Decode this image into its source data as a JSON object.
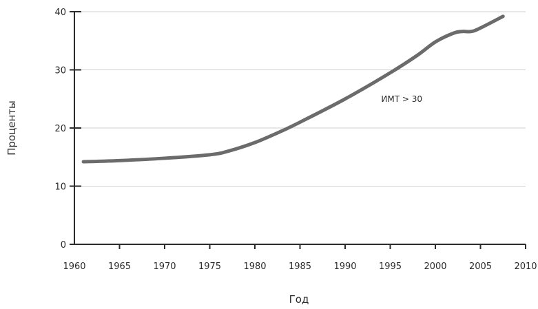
{
  "chart_data": {
    "type": "line",
    "xlabel": "Год",
    "ylabel": "Проценты",
    "xlim": [
      1960,
      2010
    ],
    "ylim": [
      0,
      40
    ],
    "x_ticks": [
      1960,
      1965,
      1970,
      1975,
      1980,
      1985,
      1990,
      1995,
      2000,
      2005,
      2010
    ],
    "y_ticks": [
      0,
      10,
      20,
      30,
      40
    ],
    "grid": true,
    "colors": {
      "line": "#6b6b6b",
      "grid": "#cfcfcf",
      "axis": "#2b2b2b"
    },
    "series": [
      {
        "name": "ИМТ > 30",
        "x": [
          1961,
          1965,
          1970,
          1975,
          1977,
          1980,
          1983,
          1985,
          1990,
          1995,
          1998,
          2000,
          2002,
          2003,
          2004,
          2005,
          2007.5
        ],
        "y": [
          14.2,
          14.4,
          14.8,
          15.4,
          16.0,
          17.5,
          19.5,
          21.0,
          25.0,
          29.5,
          32.5,
          34.8,
          36.3,
          36.6,
          36.6,
          37.2,
          39.2
        ]
      }
    ],
    "annotations": [
      {
        "text": "ИМТ > 30",
        "x": 1994,
        "y": 24.5
      }
    ]
  }
}
